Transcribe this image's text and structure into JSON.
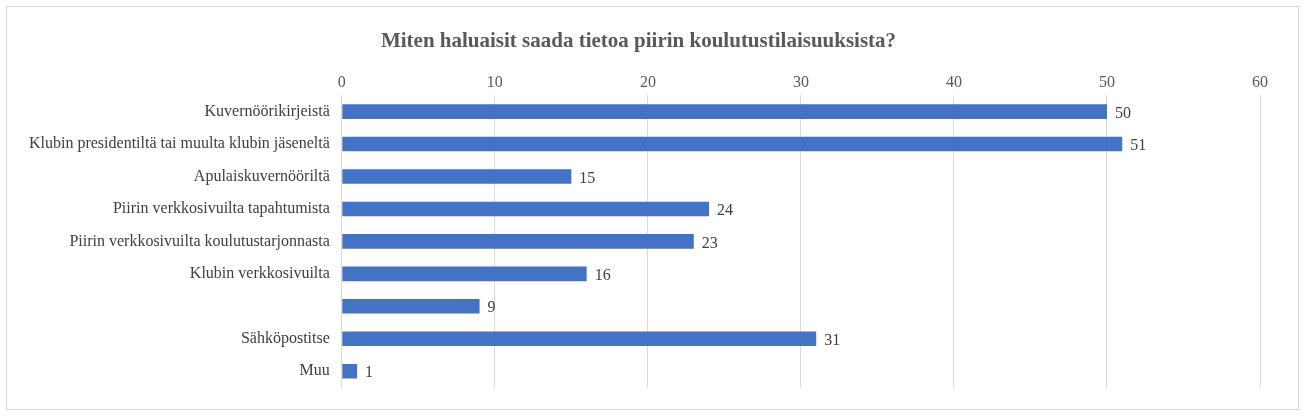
{
  "chart_data": {
    "type": "bar",
    "orientation": "horizontal",
    "title": "Miten haluaisit saada tietoa piirin koulutustilaisuuksista?",
    "categories": [
      "Kuvernöörikirjeistä",
      "Klubin presidentiltä tai muulta klubin jäseneltä",
      "Apulaiskuvernööriltä",
      "Piirin verkkosivuilta tapahtumista",
      "Piirin verkkosivuilta koulutustarjonnasta",
      "Klubin verkkosivuilta",
      null,
      "Sähköpostitse",
      "Muu"
    ],
    "values": [
      50,
      51,
      15,
      24,
      23,
      16,
      9,
      31,
      1
    ],
    "color": "#4472c4",
    "xlim": [
      0,
      60
    ],
    "xticks": [
      0,
      10,
      20,
      30,
      40,
      50,
      60
    ],
    "grid": "x",
    "data_labels": true
  }
}
